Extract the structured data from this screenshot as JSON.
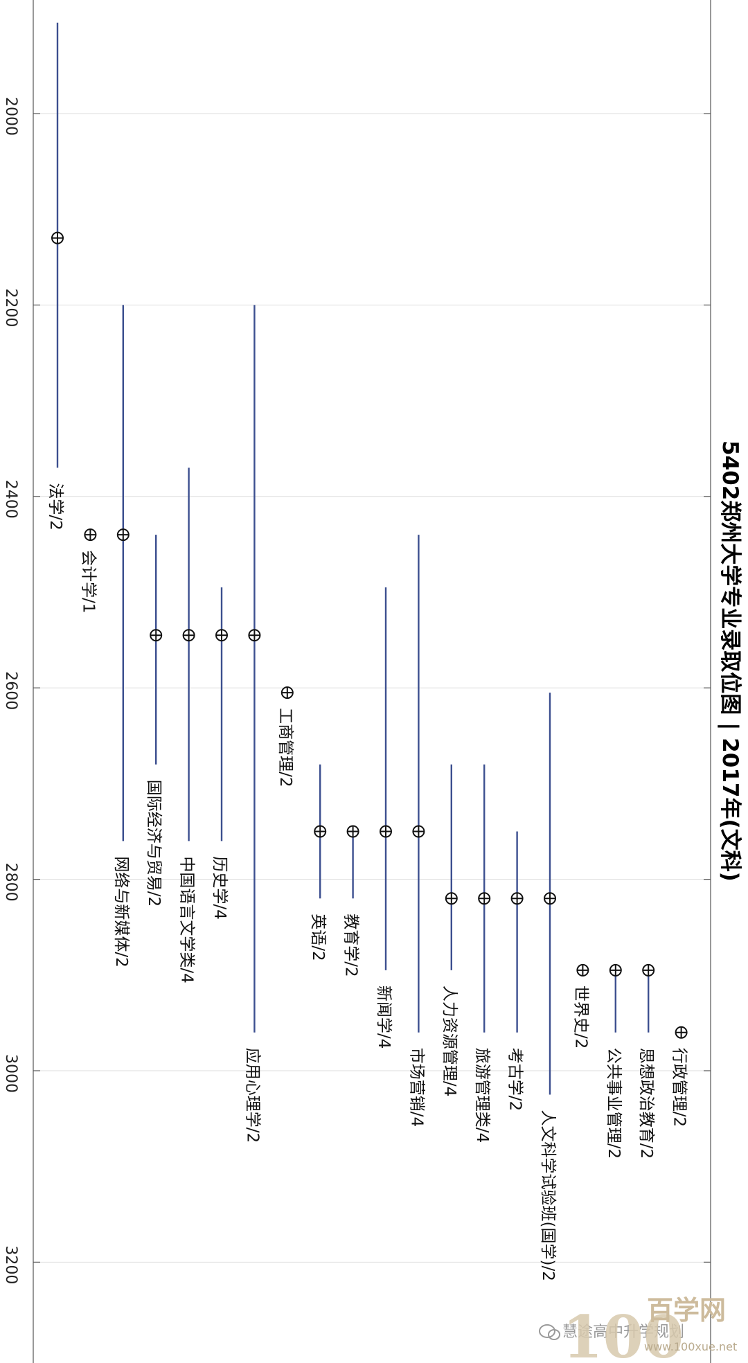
{
  "chart_data": {
    "type": "range-dot",
    "title": "5402郑州大学专业录取位图 | 2017年(文科)",
    "orientation": "rotated-90-clockwise",
    "ylim": [
      1900,
      3300
    ],
    "ticks": [
      2000,
      2200,
      2400,
      2600,
      2800,
      3000,
      3200
    ],
    "grid": true,
    "colors": {
      "range": "#3c4f8f",
      "dot": "#111111",
      "grid": "#dddddd",
      "axis": "#555555"
    },
    "items": [
      {
        "label": "法学/2",
        "low": 1905,
        "high": 2370,
        "point": 2130
      },
      {
        "label": "会计学/1",
        "low": null,
        "high": null,
        "point": 2440
      },
      {
        "label": "网络与新媒体/2",
        "low": 2200,
        "high": 2760,
        "point": 2440
      },
      {
        "label": "国际经济与贸易/2",
        "low": 2440,
        "high": 2680,
        "point": 2545
      },
      {
        "label": "中国语言文学类/4",
        "low": 2370,
        "high": 2760,
        "point": 2545
      },
      {
        "label": "历史学/4",
        "low": 2495,
        "high": 2760,
        "point": 2545
      },
      {
        "label": "应用心理学/2",
        "low": 2200,
        "high": 2960,
        "point": 2545
      },
      {
        "label": "工商管理/2",
        "low": null,
        "high": null,
        "point": 2605
      },
      {
        "label": "英语/2",
        "low": 2680,
        "high": 2820,
        "point": 2750
      },
      {
        "label": "教育学/2",
        "low": 2750,
        "high": 2820,
        "point": 2750
      },
      {
        "label": "新闻学/4",
        "low": 2495,
        "high": 2895,
        "point": 2750
      },
      {
        "label": "市场营销/4",
        "low": 2440,
        "high": 2960,
        "point": 2750
      },
      {
        "label": "人力资源管理/4",
        "low": 2680,
        "high": 2895,
        "point": 2820
      },
      {
        "label": "旅游管理类/4",
        "low": 2680,
        "high": 2960,
        "point": 2820
      },
      {
        "label": "考古学/2",
        "low": 2750,
        "high": 2960,
        "point": 2820
      },
      {
        "label": "人文科学试验班(国学)/2",
        "low": 2605,
        "high": 3025,
        "point": 2820
      },
      {
        "label": "世界史/2",
        "low": null,
        "high": null,
        "point": 2895
      },
      {
        "label": "公共事业管理/2",
        "low": 2895,
        "high": 2960,
        "point": 2895
      },
      {
        "label": "思想政治教育/2",
        "low": 2895,
        "high": 2960,
        "point": 2895
      },
      {
        "label": "行政管理/2",
        "low": null,
        "high": null,
        "point": 2960
      }
    ]
  },
  "watermark": {
    "brand": "百学网",
    "number": "100",
    "url": "www.100xue.net",
    "wechat": "慧途高中升学规划"
  }
}
